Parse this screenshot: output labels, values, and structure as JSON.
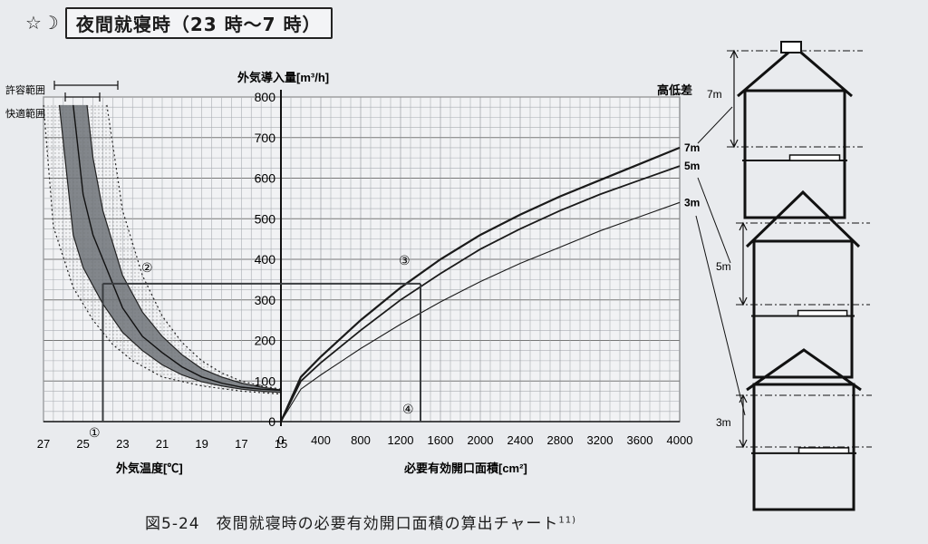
{
  "header": {
    "title": "夜間就寝時（23 時〜7 時）",
    "moon_icon": "moon-star-icon"
  },
  "caption": {
    "text": "図5-24　夜間就寝時の必要有効開口面積の算出チャート",
    "ref": "11)"
  },
  "labels": {
    "allowable_range": "許容範囲",
    "comfort_range": "快適範囲",
    "y_axis": "外気導入量[m³/h]",
    "x_axis_left": "外気温度[℃]",
    "x_axis_right": "必要有効開口面積[cm²]",
    "height_diff": "高低差",
    "markers": [
      "①",
      "②",
      "③",
      "④"
    ]
  },
  "chart_data": {
    "type": "line",
    "y_axis": {
      "label": "外気導入量[m³/h]",
      "range": [
        0,
        800
      ],
      "ticks": [
        0,
        100,
        200,
        300,
        400,
        500,
        600,
        700,
        800
      ]
    },
    "left_panel": {
      "x_label": "外気温度[℃]",
      "x_range": [
        27,
        15
      ],
      "ticks": [
        "27",
        "25",
        "23",
        "21",
        "19",
        "17",
        "15"
      ],
      "tick_values": [
        27,
        25,
        23,
        21,
        19,
        17,
        15
      ],
      "series": [
        {
          "role": "center",
          "x": [
            25.5,
            25.0,
            24.5,
            24.0,
            23.0,
            22.0,
            21.0,
            20.0,
            19.0,
            18.0,
            17.0,
            16.0,
            15.0
          ],
          "y": [
            780,
            560,
            460,
            400,
            280,
            210,
            170,
            135,
            110,
            95,
            85,
            80,
            77
          ]
        },
        {
          "role": "comfort-upper",
          "x": [
            24.8,
            24.5,
            24.0,
            23.0,
            22.0,
            21.0,
            20.0,
            19.0,
            18.0,
            17.0,
            16.0,
            15.0
          ],
          "y": [
            780,
            650,
            520,
            360,
            270,
            210,
            165,
            130,
            110,
            95,
            85,
            78
          ]
        },
        {
          "role": "comfort-lower",
          "x": [
            26.2,
            25.5,
            25.0,
            24.0,
            23.0,
            22.0,
            21.0,
            20.0,
            19.0,
            18.0,
            17.0,
            16.0,
            15.0
          ],
          "y": [
            780,
            460,
            380,
            290,
            220,
            175,
            140,
            115,
            98,
            88,
            80,
            75,
            72
          ]
        },
        {
          "role": "allowable-upper",
          "x": [
            23.8,
            23.0,
            22.0,
            21.0,
            20.0,
            19.0,
            18.0,
            17.0,
            16.0,
            15.0
          ],
          "y": [
            780,
            520,
            360,
            260,
            195,
            150,
            120,
            100,
            88,
            80
          ]
        },
        {
          "role": "allowable-lower",
          "x": [
            27.0,
            26.5,
            25.5,
            24.5,
            23.5,
            22.5,
            21.0,
            19.0,
            17.0,
            15.0
          ],
          "y": [
            780,
            480,
            330,
            250,
            190,
            150,
            110,
            88,
            75,
            68
          ]
        }
      ]
    },
    "right_panel": {
      "x_label": "必要有効開口面積[cm²]",
      "x_range": [
        0,
        4000
      ],
      "ticks": [
        "0",
        "400",
        "800",
        "1200",
        "1600",
        "2000",
        "2400",
        "2800",
        "3200",
        "3600",
        "4000"
      ],
      "tick_values": [
        0,
        400,
        800,
        1200,
        1600,
        2000,
        2400,
        2800,
        3200,
        3600,
        4000
      ],
      "series": [
        {
          "name": "7m",
          "x": [
            0,
            200,
            400,
            800,
            1200,
            1600,
            2000,
            2400,
            2800,
            3200,
            3600,
            4000
          ],
          "y": [
            0,
            110,
            160,
            250,
            330,
            400,
            460,
            510,
            555,
            595,
            635,
            675
          ]
        },
        {
          "name": "5m",
          "x": [
            0,
            200,
            400,
            800,
            1200,
            1600,
            2000,
            2400,
            2800,
            3200,
            3600,
            4000
          ],
          "y": [
            0,
            100,
            145,
            225,
            300,
            365,
            425,
            475,
            520,
            560,
            595,
            630
          ]
        },
        {
          "name": "3m",
          "x": [
            0,
            200,
            400,
            800,
            1200,
            1600,
            2000,
            2400,
            2800,
            3200,
            3600,
            4000
          ],
          "y": [
            0,
            80,
            115,
            180,
            240,
            295,
            345,
            390,
            430,
            470,
            505,
            540
          ]
        }
      ]
    },
    "worked_example": {
      "temperature": 24,
      "flow": 340,
      "area": 1400
    },
    "houses": [
      {
        "label": "7m"
      },
      {
        "label": "5m"
      },
      {
        "label": "3m"
      }
    ]
  }
}
